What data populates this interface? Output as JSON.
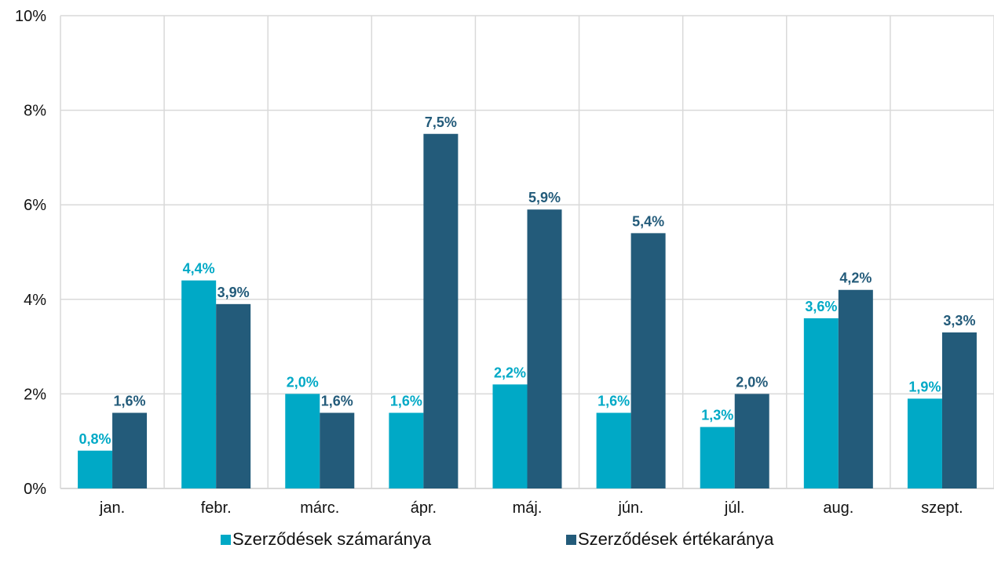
{
  "chart_data": {
    "type": "bar",
    "categories": [
      "jan.",
      "febr.",
      "márc.",
      "ápr.",
      "máj.",
      "jún.",
      "júl.",
      "aug.",
      "szept."
    ],
    "series": [
      {
        "name": "Szerződések számaránya",
        "color": "#00a9c6",
        "values": [
          0.8,
          4.4,
          2.0,
          1.6,
          2.2,
          1.6,
          1.3,
          3.6,
          1.9
        ],
        "labels": [
          "0,8%",
          "4,4%",
          "2,0%",
          "1,6%",
          "2,2%",
          "1,6%",
          "1,3%",
          "3,6%",
          "1,9%"
        ]
      },
      {
        "name": "Szerződések értékaránya",
        "color": "#235b7a",
        "values": [
          1.6,
          3.9,
          1.6,
          7.5,
          5.9,
          5.4,
          2.0,
          4.2,
          3.3
        ],
        "labels": [
          "1,6%",
          "3,9%",
          "1,6%",
          "7,5%",
          "5,9%",
          "5,4%",
          "2,0%",
          "4,2%",
          "3,3%"
        ]
      }
    ],
    "ylim": [
      0,
      10
    ],
    "yticks": [
      0,
      2,
      4,
      6,
      8,
      10
    ],
    "ytick_labels": [
      "0%",
      "2%",
      "4%",
      "6%",
      "8%",
      "10%"
    ],
    "grid": true,
    "legend": "bottom",
    "title": "",
    "xlabel": "",
    "ylabel": ""
  }
}
